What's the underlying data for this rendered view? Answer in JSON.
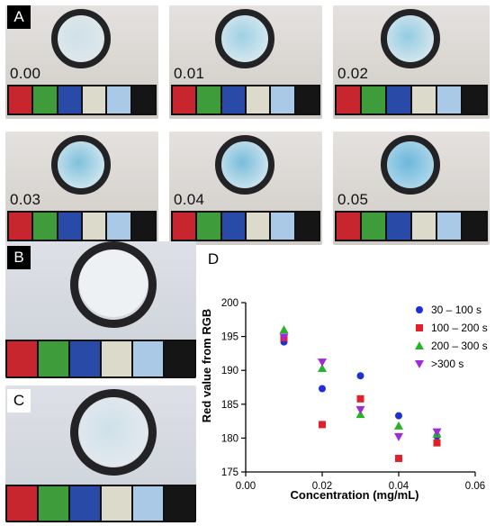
{
  "panels": {
    "a": {
      "label": "A",
      "tiles": [
        {
          "concentration": "0.00",
          "disk_color": "#dde7ea",
          "spot_color": "#cfe1e8"
        },
        {
          "concentration": "0.01",
          "disk_color": "#d2e6ee",
          "spot_color": "#9fd0e4"
        },
        {
          "concentration": "0.02",
          "disk_color": "#cfe5ee",
          "spot_color": "#93cbe1"
        },
        {
          "concentration": "0.03",
          "disk_color": "#c9e3ee",
          "spot_color": "#7fc0dc"
        },
        {
          "concentration": "0.04",
          "disk_color": "#c6e1ed",
          "spot_color": "#78bcdb"
        },
        {
          "concentration": "0.05",
          "disk_color": "#a9d5ea",
          "spot_color": "#6cb7da"
        }
      ]
    },
    "b": {
      "label": "B",
      "disk_color": "#eef1f3"
    },
    "c": {
      "label": "C",
      "disk_color": "#cfe0ea"
    },
    "d": {
      "label": "D"
    },
    "swatches": [
      "#c8262e",
      "#3f9c3a",
      "#2a4aa8",
      "#dcdacb",
      "#a9c9e6",
      "#151515"
    ]
  },
  "chart_data": {
    "type": "scatter",
    "ylabel": "Red value from RGB",
    "xlabel": "Concentration (mg/mL)",
    "xlim": [
      0.0,
      0.06
    ],
    "ylim": [
      175,
      200
    ],
    "x_ticks": [
      "0.00",
      "0.02",
      "0.04",
      "0.06"
    ],
    "y_ticks": [
      "175",
      "180",
      "185",
      "190",
      "195",
      "200"
    ],
    "x_tick_values": [
      0.0,
      0.02,
      0.04,
      0.06
    ],
    "y_tick_values": [
      175,
      180,
      185,
      190,
      195,
      200
    ],
    "grid": false,
    "legend_position": "top-right",
    "series": [
      {
        "name": "30 – 100 s",
        "marker": "circle",
        "color": "#1f2fd6",
        "points": [
          [
            0.01,
            194.2
          ],
          [
            0.02,
            187.3
          ],
          [
            0.03,
            189.2
          ],
          [
            0.04,
            183.3
          ],
          [
            0.05,
            180.3
          ]
        ]
      },
      {
        "name": "100 – 200 s",
        "marker": "square",
        "color": "#e0202a",
        "points": [
          [
            0.01,
            194.8
          ],
          [
            0.02,
            182.0
          ],
          [
            0.03,
            185.8
          ],
          [
            0.04,
            177.0
          ],
          [
            0.05,
            179.3
          ]
        ]
      },
      {
        "name": "200 – 300 s",
        "marker": "triangle-up",
        "color": "#27b327",
        "points": [
          [
            0.01,
            196.0
          ],
          [
            0.02,
            190.3
          ],
          [
            0.03,
            183.5
          ],
          [
            0.04,
            181.8
          ],
          [
            0.05,
            180.6
          ]
        ]
      },
      {
        "name": ">300 s",
        "marker": "triangle-down",
        "color": "#a02bd6",
        "points": [
          [
            0.01,
            194.9
          ],
          [
            0.02,
            191.2
          ],
          [
            0.03,
            184.2
          ],
          [
            0.04,
            180.2
          ],
          [
            0.05,
            180.9
          ]
        ]
      }
    ]
  }
}
